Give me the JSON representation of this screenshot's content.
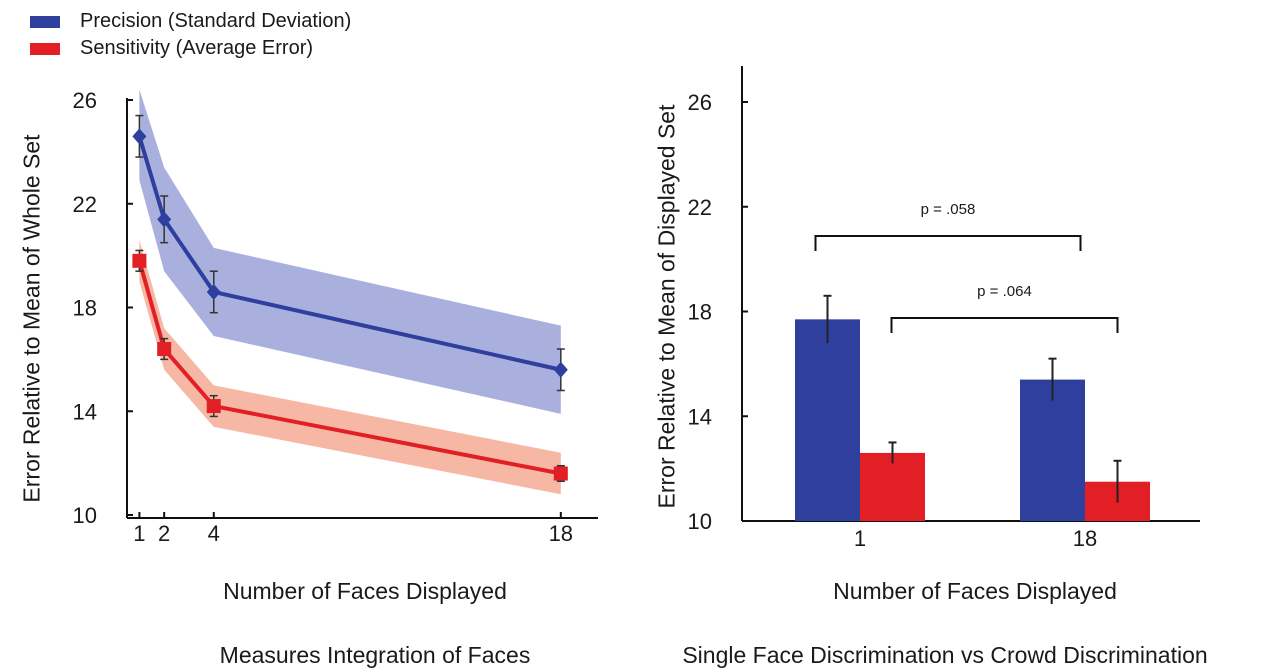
{
  "legend": {
    "precision_label": "Precision (Standard Deviation)",
    "precision_color": "#2e3f9e",
    "sensitivity_label": "Sensitivity (Average Error)",
    "sensitivity_color": "#e31f26"
  },
  "chart_data": [
    {
      "type": "line",
      "x_ticks": [
        "1",
        "2",
        "4",
        "18"
      ],
      "y_ticks": [
        "10",
        "14",
        "18",
        "22",
        "26"
      ],
      "ylim": [
        10,
        26
      ],
      "xlim": [
        0.5,
        19.5
      ],
      "xlabel": "Number of Faces Displayed",
      "ylabel": "Error Relative to Mean of Whole Set",
      "caption": "Measures Integration of Faces",
      "grid": false,
      "series": [
        {
          "name": "Precision (Standard Deviation)",
          "color": "#2e3f9e",
          "band_color": "#aab0de",
          "x": [
            1,
            2,
            4,
            18
          ],
          "y": [
            24.6,
            21.4,
            18.6,
            15.6
          ],
          "err": [
            0.8,
            0.9,
            0.8,
            0.8
          ],
          "band_low": [
            22.9,
            19.4,
            16.9,
            13.9
          ],
          "band_high": [
            26.4,
            23.4,
            20.3,
            17.3
          ]
        },
        {
          "name": "Sensitivity (Average Error)",
          "color": "#e31f26",
          "band_color": "#f6b8a4",
          "x": [
            1,
            2,
            4,
            18
          ],
          "y": [
            19.8,
            16.4,
            14.2,
            11.6
          ],
          "err": [
            0.4,
            0.4,
            0.4,
            0.3
          ],
          "band_low": [
            19.0,
            15.6,
            13.4,
            10.8
          ],
          "band_high": [
            20.6,
            17.2,
            15.0,
            12.4
          ]
        }
      ]
    },
    {
      "type": "bar",
      "categories": [
        "1",
        "18"
      ],
      "y_ticks": [
        "10",
        "14",
        "18",
        "22",
        "26"
      ],
      "ylim": [
        10,
        27
      ],
      "xlabel": "Number of Faces Displayed",
      "ylabel": "Error Relative to Mean of Displayed Set",
      "caption": "Single Face Discrimination vs Crowd Discrimination",
      "grid": false,
      "series": [
        {
          "name": "Precision (Standard Deviation)",
          "color": "#2e3f9e",
          "values": [
            17.7,
            15.4
          ],
          "err": [
            0.9,
            0.8
          ]
        },
        {
          "name": "Sensitivity (Average Error)",
          "color": "#e31f26",
          "values": [
            12.6,
            11.5
          ],
          "err": [
            0.4,
            0.8
          ]
        }
      ],
      "annotations": [
        {
          "text": "p  = .058",
          "from": {
            "category": 0,
            "series": 0
          },
          "to": {
            "category": 1,
            "series": 0
          }
        },
        {
          "text": "p = .064",
          "from": {
            "category": 0,
            "series": 1
          },
          "to": {
            "category": 1,
            "series": 1
          }
        }
      ]
    }
  ]
}
